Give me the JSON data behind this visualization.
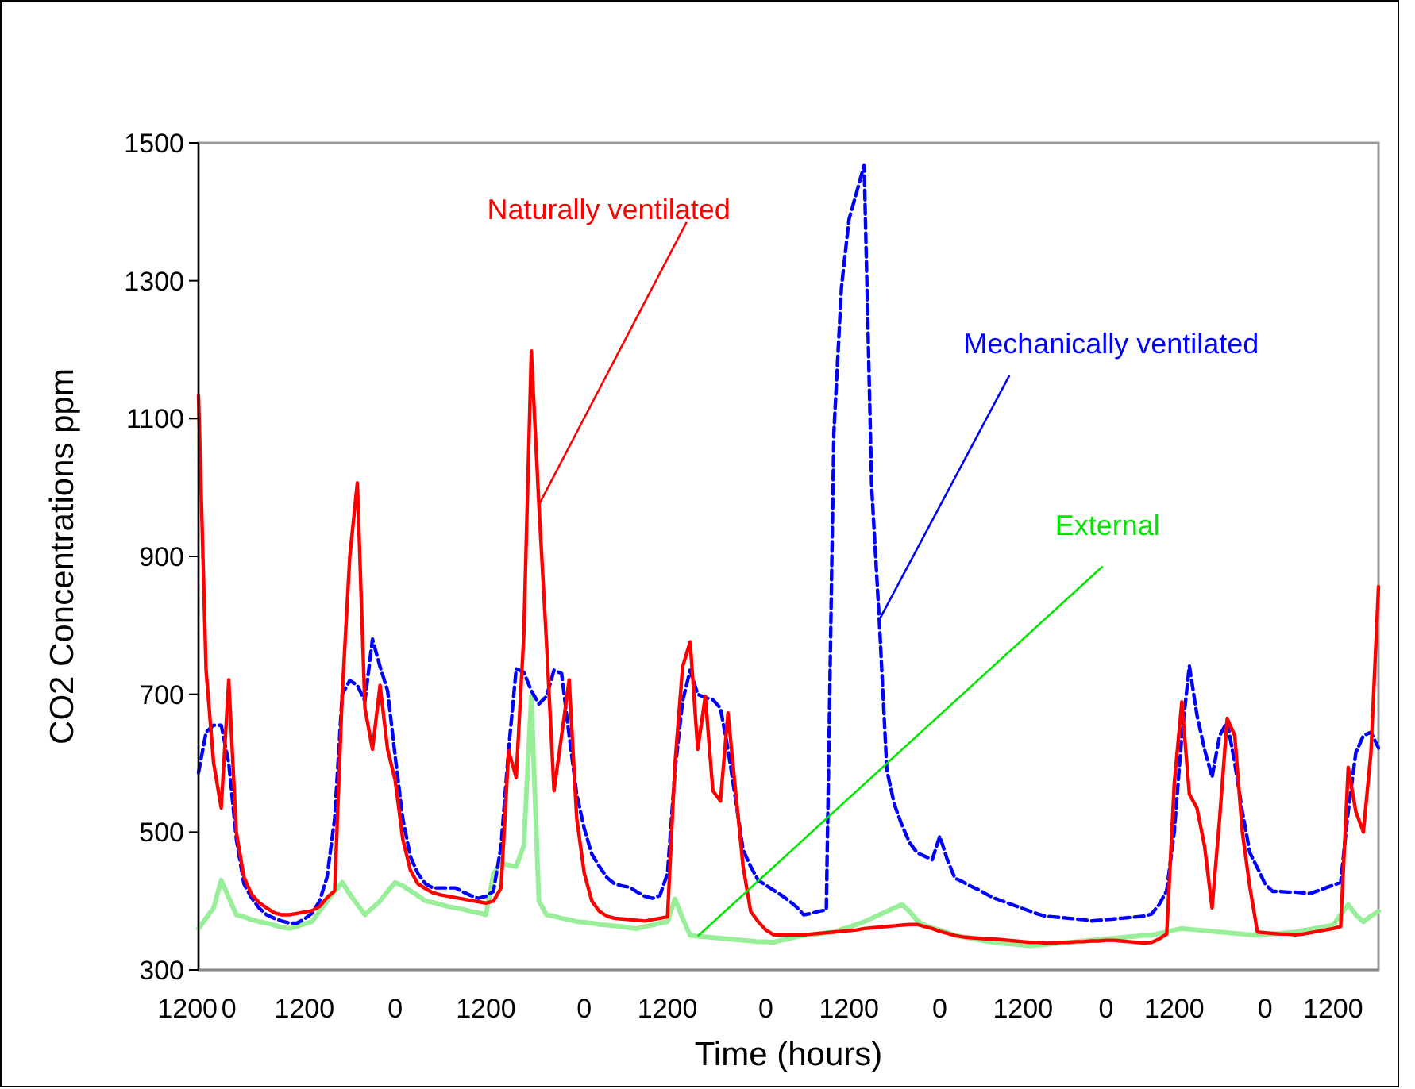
{
  "chart_data": {
    "type": "line",
    "xlabel": "Time (hours)",
    "ylabel": "CO2 Concentrations ppm",
    "ylim": [
      300,
      1500
    ],
    "categories": [
      "1200",
      null,
      null,
      null,
      "0",
      null,
      null,
      null,
      null,
      null,
      null,
      null,
      null,
      null,
      "1200",
      null,
      null,
      null,
      null,
      null,
      null,
      null,
      null,
      null,
      null,
      null,
      "0",
      null,
      null,
      null,
      null,
      null,
      null,
      null,
      null,
      null,
      null,
      null,
      "1200",
      null,
      null,
      null,
      null,
      null,
      null,
      null,
      null,
      null,
      null,
      null,
      null,
      "0",
      null,
      null,
      null,
      null,
      null,
      null,
      null,
      null,
      null,
      null,
      "1200",
      null,
      null,
      null,
      null,
      null,
      null,
      null,
      null,
      null,
      null,
      null,
      null,
      "0",
      null,
      null,
      null,
      null,
      null,
      null,
      null,
      null,
      null,
      null,
      "1200",
      null,
      null,
      null,
      null,
      null,
      null,
      null,
      null,
      null,
      null,
      null,
      "0",
      null,
      null,
      null,
      null,
      null,
      null,
      null,
      null,
      null,
      null,
      "1200",
      null,
      null,
      null,
      null,
      null,
      null,
      null,
      null,
      null,
      null,
      "0",
      null,
      null,
      null,
      null,
      null,
      null,
      null,
      null,
      "1200",
      null,
      null,
      null,
      null,
      null,
      null,
      null,
      null,
      null,
      null,
      null,
      "0",
      null,
      null,
      null,
      null,
      null,
      null,
      null,
      null,
      "1200",
      null,
      null,
      null,
      null,
      null,
      null
    ],
    "yticks": [
      300,
      500,
      700,
      900,
      1100,
      1300,
      1500
    ],
    "grid": false,
    "marker": "none",
    "series": [
      {
        "name": "External",
        "color": "#99ee99",
        "values": [
          360,
          375,
          390,
          430,
          405,
          380,
          377,
          373,
          370,
          368,
          365,
          362,
          360,
          363,
          367,
          370,
          385,
          400,
          414,
          427,
          410,
          395,
          380,
          390,
          400,
          414,
          427,
          422,
          415,
          408,
          400,
          398,
          395,
          392,
          390,
          388,
          385,
          383,
          380,
          440,
          455,
          452,
          450,
          480,
          697,
          400,
          380,
          378,
          375,
          373,
          370,
          369,
          368,
          366,
          365,
          364,
          363,
          361,
          360,
          363,
          365,
          368,
          370,
          403,
          375,
          350,
          349,
          348,
          347,
          346,
          345,
          344,
          343,
          342,
          341,
          341,
          340,
          343,
          345,
          348,
          350,
          351,
          352,
          354,
          355,
          359,
          362,
          366,
          370,
          375,
          380,
          385,
          390,
          395,
          385,
          372,
          365,
          361,
          358,
          354,
          350,
          348,
          346,
          344,
          342,
          340,
          339,
          338,
          337,
          336,
          335,
          336,
          337,
          338,
          339,
          340,
          341,
          342,
          343,
          344,
          345,
          346,
          347,
          348,
          349,
          350,
          350,
          353,
          355,
          358,
          360,
          359,
          358,
          357,
          356,
          355,
          354,
          353,
          352,
          351,
          350,
          351,
          352,
          353,
          354,
          355,
          357,
          359,
          361,
          363,
          365,
          380,
          395,
          380,
          370,
          378,
          385
        ]
      },
      {
        "name": "Mechanically ventilated",
        "color": "#0000ff",
        "line_style": "dashed",
        "values": [
          586,
          645,
          655,
          655,
          600,
          490,
          425,
          405,
          390,
          380,
          375,
          371,
          368,
          368,
          374,
          382,
          400,
          435,
          520,
          700,
          720,
          713,
          690,
          780,
          740,
          705,
          610,
          520,
          465,
          440,
          425,
          419,
          419,
          419,
          419,
          413,
          408,
          404,
          407,
          414,
          480,
          620,
          737,
          732,
          705,
          686,
          697,
          735,
          730,
          640,
          555,
          505,
          468,
          450,
          434,
          425,
          422,
          420,
          413,
          407,
          404,
          408,
          440,
          590,
          690,
          735,
          700,
          695,
          692,
          680,
          620,
          548,
          474,
          450,
          430,
          423,
          416,
          409,
          401,
          392,
          380,
          382,
          385,
          387,
          1080,
          1290,
          1389,
          1428,
          1468,
          1000,
          808,
          590,
          540,
          510,
          485,
          470,
          465,
          460,
          494,
          460,
          433,
          428,
          422,
          417,
          411,
          405,
          401,
          397,
          393,
          389,
          385,
          381,
          378,
          377,
          376,
          375,
          374,
          373,
          371,
          372,
          373,
          374,
          375,
          376,
          377,
          378,
          381,
          395,
          415,
          500,
          640,
          741,
          670,
          620,
          580,
          640,
          660,
          600,
          530,
          470,
          448,
          425,
          414,
          414,
          413,
          413,
          412,
          411,
          415,
          419,
          423,
          427,
          530,
          615,
          640,
          645,
          622
        ]
      },
      {
        "name": "Naturally ventilated",
        "color": "#ff0000",
        "values": [
          1134,
          735,
          600,
          535,
          721,
          500,
          435,
          410,
          398,
          390,
          383,
          380,
          380,
          382,
          384,
          386,
          392,
          405,
          415,
          700,
          900,
          1007,
          680,
          620,
          713,
          620,
          575,
          490,
          445,
          425,
          418,
          412,
          409,
          407,
          405,
          403,
          401,
          399,
          397,
          400,
          419,
          618,
          579,
          784,
          1198,
          975,
          776,
          560,
          640,
          721,
          520,
          440,
          400,
          385,
          378,
          375,
          374,
          373,
          372,
          371,
          373,
          375,
          377,
          600,
          740,
          776,
          620,
          697,
          560,
          545,
          673,
          560,
          450,
          385,
          370,
          358,
          351,
          351,
          351,
          351,
          351,
          352,
          353,
          354,
          355,
          356,
          357,
          358,
          360,
          361,
          362,
          363,
          364,
          365,
          366,
          366,
          363,
          360,
          356,
          353,
          350,
          348,
          347,
          346,
          345,
          345,
          344,
          343,
          342,
          341,
          340,
          340,
          339,
          339,
          340,
          340,
          341,
          341,
          342,
          342,
          343,
          343,
          342,
          341,
          340,
          339,
          340,
          345,
          352,
          570,
          689,
          555,
          535,
          480,
          390,
          520,
          665,
          640,
          500,
          420,
          355,
          354,
          353,
          352,
          352,
          351,
          352,
          354,
          356,
          358,
          360,
          363,
          594,
          530,
          500,
          615,
          856
        ]
      }
    ]
  }
}
